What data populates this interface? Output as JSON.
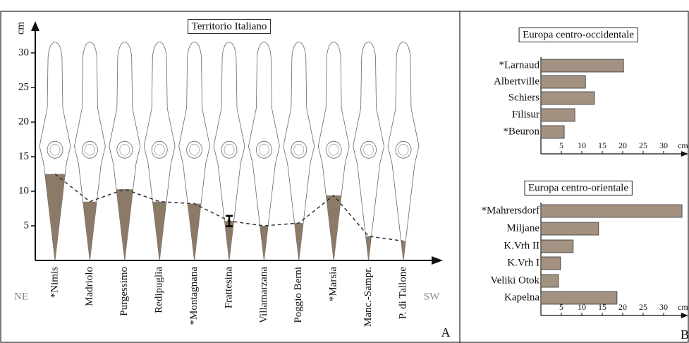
{
  "chart_data": [
    {
      "type": "line",
      "title": "Territorio Italiano",
      "ylabel": "cm",
      "panel": "A",
      "direction_labels": [
        "NE",
        "SW"
      ],
      "categories": [
        "*Nimis",
        "Madriolo",
        "Purgessimo",
        "Redipuglia",
        "*Montagnana",
        "Frattesina",
        "Villamarzana",
        "Poggio Berni",
        "*Marsia",
        "Manc.-Sampr.",
        "P. di Tallone"
      ],
      "values": [
        12.5,
        8.5,
        10.3,
        8.5,
        8.2,
        5.7,
        5,
        5.4,
        9.4,
        3.5,
        2.8
      ],
      "errors": [
        null,
        null,
        null,
        null,
        null,
        0.75,
        null,
        null,
        null,
        null,
        null
      ],
      "color": "#8c7a68",
      "line_style": "dashed",
      "ylim": [
        0,
        34
      ],
      "yticks": [
        5,
        10,
        15,
        20,
        25,
        30
      ]
    },
    {
      "type": "bar",
      "title": "Europa centro-occidentale",
      "xlabel": "cm",
      "panel": "B",
      "categories": [
        "*Larnaud",
        "Albertville",
        "Schiers",
        "Filisur",
        "*Beuron"
      ],
      "values": [
        20.2,
        10.9,
        13.1,
        8.3,
        5.7
      ],
      "color": "#a39282",
      "xlim": [
        0,
        36
      ],
      "xticks": [
        5,
        10,
        15,
        20,
        25,
        30
      ]
    },
    {
      "type": "bar",
      "title": "Europa centro-orientale",
      "xlabel": "cm",
      "categories": [
        "*Mahrersdorf",
        "Miljane",
        "K.Vrh II",
        "K.Vrh I",
        "Veliki Otok",
        "Kapelna"
      ],
      "values": [
        34.5,
        14.1,
        7.9,
        4.8,
        4.3,
        18.6
      ],
      "color": "#a39282",
      "xlim": [
        0,
        36
      ],
      "xticks": [
        5,
        10,
        15,
        20,
        25,
        30
      ]
    }
  ]
}
